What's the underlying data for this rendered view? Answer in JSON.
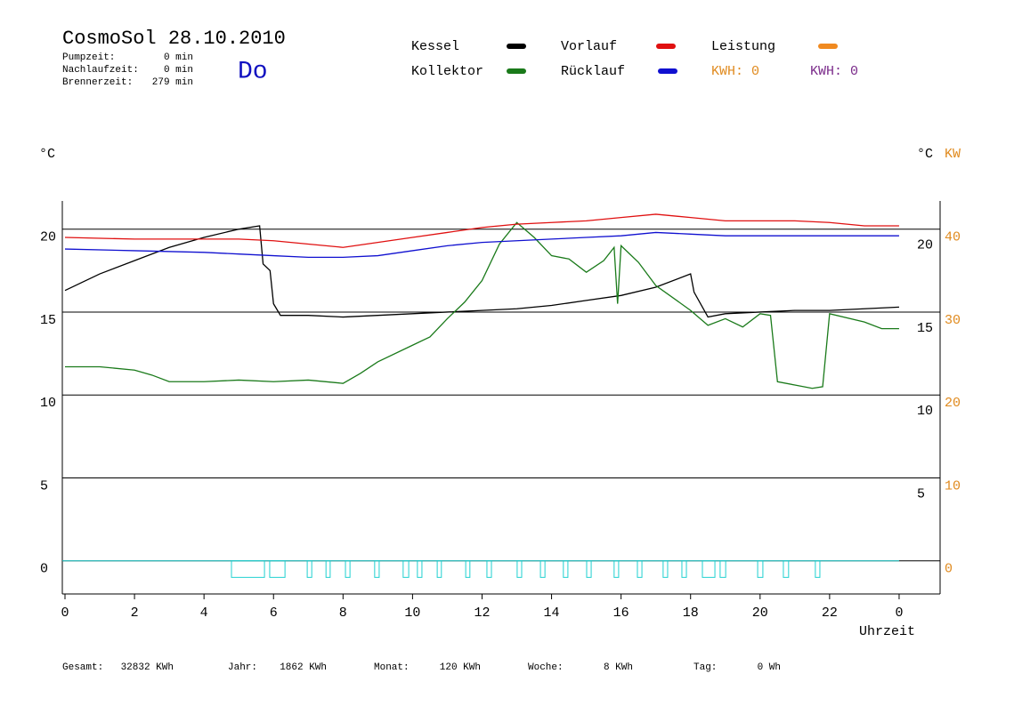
{
  "header": {
    "title": "CosmoSol 28.10.2010",
    "weekday": "Do",
    "stats": [
      [
        "Pumpzeit:",
        "0 min"
      ],
      [
        "Nachlaufzeit:",
        "0 min"
      ],
      [
        "Brennerzeit:",
        "279 min"
      ]
    ],
    "kwh": [
      {
        "text": "KWH: 0",
        "color": "#e08a1e"
      },
      {
        "text": "KWH: 0",
        "color": "#7a2a8a"
      }
    ]
  },
  "footer": [
    [
      "Gesamt:",
      "32832 KWh"
    ],
    [
      "Jahr:",
      "1862 KWh"
    ],
    [
      "Monat:",
      "120 KWh"
    ],
    [
      "Woche:",
      "8 KWh"
    ],
    [
      "Tag:",
      "0 Wh"
    ]
  ],
  "chart_data": {
    "type": "line",
    "y_label": "°C",
    "y2_label_1": "°C",
    "y2_label_2": "KW",
    "x_label": "Uhrzeit",
    "xlim": [
      0,
      25.2
    ],
    "xticks": [
      0,
      2,
      4,
      6,
      8,
      10,
      12,
      14,
      16,
      18,
      20,
      22,
      {
        "value": 24,
        "label": "0"
      }
    ],
    "ylim": [
      -2,
      21.7
    ],
    "yticks": [
      0,
      5,
      10,
      15,
      20
    ],
    "inner_yticks": [
      5,
      10,
      15,
      20
    ],
    "y2lim": [
      -4,
      43.4
    ],
    "y2ticks": [
      0,
      10,
      20,
      30,
      40
    ],
    "y2color": "#e08a1e",
    "grid": true,
    "series": [
      {
        "name": "Kessel",
        "color": "#000000",
        "x": [
          0,
          1,
          2,
          3,
          4,
          5,
          5.6,
          5.7,
          5.9,
          6.0,
          6.2,
          7,
          8,
          9,
          10,
          11,
          12,
          13,
          14,
          15,
          16,
          17,
          18,
          18.1,
          18.5,
          19,
          20,
          21,
          22,
          23,
          24
        ],
        "values": [
          16.3,
          17.3,
          18.1,
          18.9,
          19.5,
          20.0,
          20.2,
          17.9,
          17.5,
          15.5,
          14.8,
          14.8,
          14.7,
          14.8,
          14.9,
          15.0,
          15.1,
          15.2,
          15.4,
          15.7,
          16.0,
          16.5,
          17.3,
          16.2,
          14.7,
          14.9,
          15.0,
          15.1,
          15.1,
          15.2,
          15.3
        ]
      },
      {
        "name": "Kollektor",
        "color": "#1a7a1a",
        "x": [
          0,
          1,
          2,
          2.5,
          3,
          4,
          5,
          6,
          7,
          8,
          8.5,
          9,
          10,
          10.5,
          11,
          11.5,
          12,
          12.5,
          13,
          13.5,
          14,
          14.5,
          15,
          15.5,
          15.8,
          15.9,
          16,
          16.5,
          17,
          18,
          18.5,
          19,
          19.5,
          20,
          20.3,
          20.5,
          21,
          21.5,
          21.8,
          22,
          23,
          23.5,
          24
        ],
        "values": [
          11.7,
          11.7,
          11.5,
          11.2,
          10.8,
          10.8,
          10.9,
          10.8,
          10.9,
          10.7,
          11.3,
          12.0,
          13.0,
          13.5,
          14.6,
          15.6,
          16.9,
          19.1,
          20.4,
          19.5,
          18.4,
          18.2,
          17.4,
          18.1,
          18.9,
          15.5,
          19.0,
          18.0,
          16.6,
          15.1,
          14.2,
          14.6,
          14.1,
          14.9,
          14.8,
          10.8,
          10.6,
          10.4,
          10.5,
          14.9,
          14.4,
          14.0,
          14.0
        ]
      },
      {
        "name": "Vorlauf",
        "color": "#e01010",
        "x": [
          0,
          2,
          5,
          6,
          7,
          8,
          9,
          10,
          11,
          12,
          13,
          14,
          15,
          16,
          17,
          18,
          19,
          20,
          21,
          22,
          23,
          24
        ],
        "values": [
          19.5,
          19.4,
          19.4,
          19.3,
          19.1,
          18.9,
          19.2,
          19.5,
          19.8,
          20.1,
          20.3,
          20.4,
          20.5,
          20.7,
          20.9,
          20.7,
          20.5,
          20.5,
          20.5,
          20.4,
          20.2,
          20.2
        ]
      },
      {
        "name": "Rücklauf",
        "color": "#1010d0",
        "x": [
          0,
          2,
          4,
          5,
          6,
          7,
          8,
          9,
          10,
          11,
          12,
          13,
          14,
          15,
          16,
          17,
          18,
          19,
          20,
          22,
          24
        ],
        "values": [
          18.8,
          18.7,
          18.6,
          18.5,
          18.4,
          18.3,
          18.3,
          18.4,
          18.7,
          19.0,
          19.2,
          19.3,
          19.4,
          19.5,
          19.6,
          19.8,
          19.7,
          19.6,
          19.6,
          19.6,
          19.6
        ]
      },
      {
        "name": "Leistung",
        "color": "#f08a20",
        "x": [],
        "values": []
      }
    ],
    "pump": {
      "color": "#20d0d0",
      "off": 0,
      "on": -1,
      "intervals": [
        [
          4.79,
          5.74
        ],
        [
          5.89,
          6.33
        ],
        [
          6.97,
          7.1
        ],
        [
          7.51,
          7.63
        ],
        [
          8.07,
          8.2
        ],
        [
          8.91,
          9.04
        ],
        [
          9.73,
          9.89
        ],
        [
          10.14,
          10.27
        ],
        [
          10.71,
          10.83
        ],
        [
          11.53,
          11.65
        ],
        [
          12.14,
          12.27
        ],
        [
          13.01,
          13.14
        ],
        [
          13.68,
          13.81
        ],
        [
          14.34,
          14.47
        ],
        [
          15.01,
          15.14
        ],
        [
          15.8,
          15.93
        ],
        [
          16.47,
          16.6
        ],
        [
          17.21,
          17.34
        ],
        [
          17.75,
          17.88
        ],
        [
          18.34,
          18.7
        ],
        [
          18.85,
          19.01
        ],
        [
          19.93,
          20.08
        ],
        [
          20.67,
          20.82
        ],
        [
          21.59,
          21.72
        ]
      ]
    }
  }
}
